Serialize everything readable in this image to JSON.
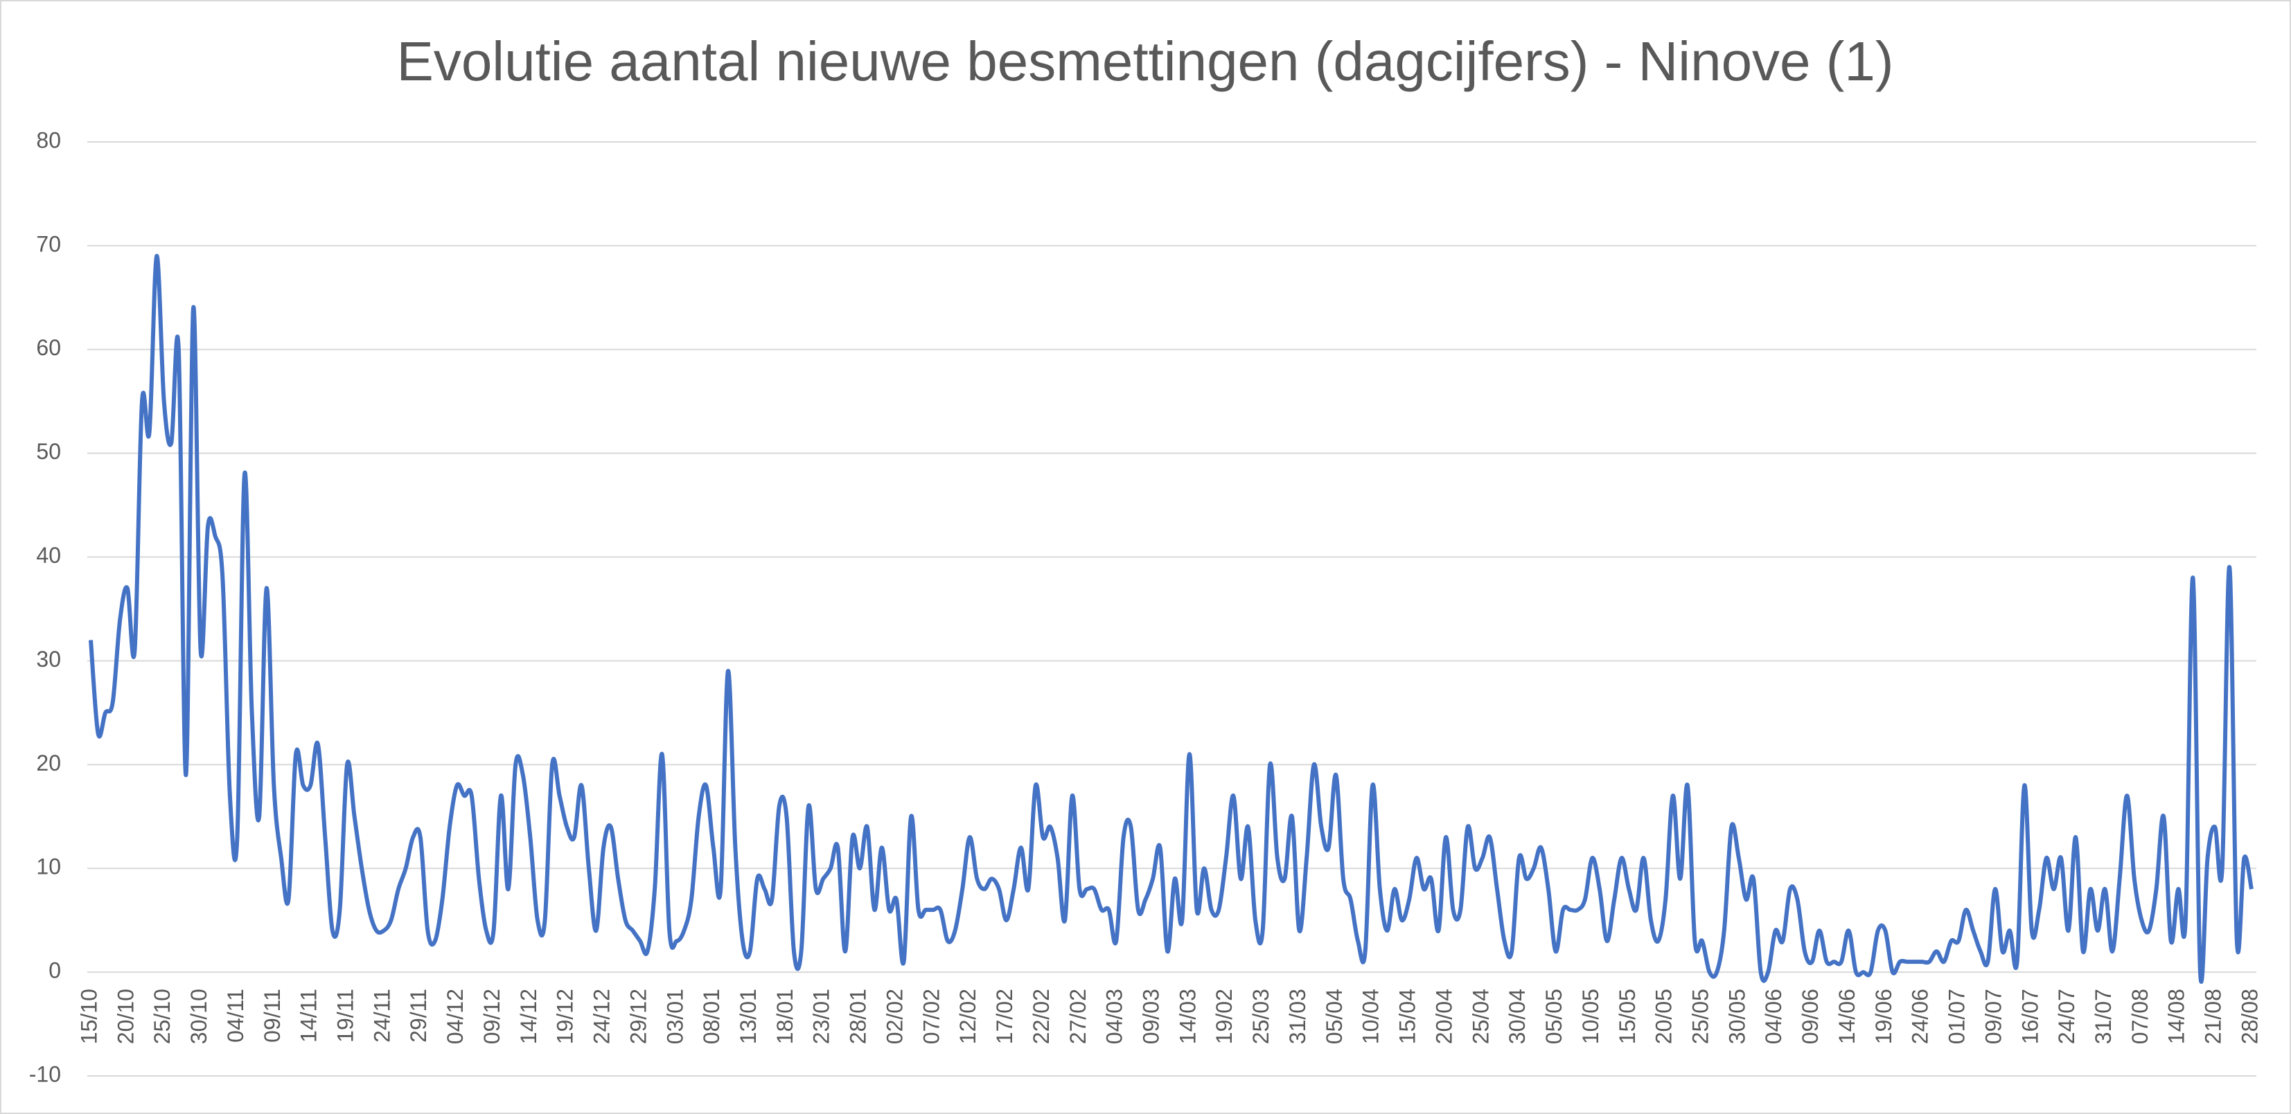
{
  "chart_data": {
    "type": "line",
    "title": "Evolutie aantal nieuwe besmettingen (dagcijfers) - Ninove (1)",
    "categories": [
      "15/10",
      null,
      null,
      null,
      null,
      "20/10",
      null,
      null,
      null,
      null,
      "25/10",
      null,
      null,
      null,
      null,
      "30/10",
      null,
      null,
      null,
      null,
      "04/11",
      null,
      null,
      null,
      null,
      "09/11",
      null,
      null,
      null,
      null,
      "14/11",
      null,
      null,
      null,
      null,
      "19/11",
      null,
      null,
      null,
      null,
      "24/11",
      null,
      null,
      null,
      null,
      "29/11",
      null,
      null,
      null,
      null,
      "04/12",
      null,
      null,
      null,
      null,
      "09/12",
      null,
      null,
      null,
      null,
      "14/12",
      null,
      null,
      null,
      null,
      "19/12",
      null,
      null,
      null,
      null,
      "24/12",
      null,
      null,
      null,
      null,
      "29/12",
      null,
      null,
      null,
      null,
      "03/01",
      null,
      null,
      null,
      null,
      "08/01",
      null,
      null,
      null,
      null,
      "13/01",
      null,
      null,
      null,
      null,
      "18/01",
      null,
      null,
      null,
      null,
      "23/01",
      null,
      null,
      null,
      null,
      "28/01",
      null,
      null,
      null,
      null,
      "02/02",
      null,
      null,
      null,
      null,
      "07/02",
      null,
      null,
      null,
      null,
      "12/02",
      null,
      null,
      null,
      null,
      "17/02",
      null,
      null,
      null,
      null,
      "22/02",
      null,
      null,
      null,
      null,
      "27/02",
      null,
      null,
      null,
      null,
      "04/03",
      null,
      null,
      null,
      null,
      "09/03",
      null,
      null,
      null,
      null,
      "14/03",
      null,
      null,
      null,
      null,
      "19/02",
      null,
      null,
      null,
      null,
      "25/03",
      null,
      null,
      null,
      null,
      "31/03",
      null,
      null,
      null,
      null,
      "05/04",
      null,
      null,
      null,
      null,
      "10/04",
      null,
      null,
      null,
      null,
      "15/04",
      null,
      null,
      null,
      null,
      "20/04",
      null,
      null,
      null,
      null,
      "25/04",
      null,
      null,
      null,
      null,
      "30/04",
      null,
      null,
      null,
      null,
      "05/05",
      null,
      null,
      null,
      null,
      "10/05",
      null,
      null,
      null,
      null,
      "15/05",
      null,
      null,
      null,
      null,
      "20/05",
      null,
      null,
      null,
      null,
      "25/05",
      null,
      null,
      null,
      null,
      "30/05",
      null,
      null,
      null,
      null,
      "04/06",
      null,
      null,
      null,
      null,
      "09/06",
      null,
      null,
      null,
      null,
      "14/06",
      null,
      null,
      null,
      null,
      "19/06",
      null,
      null,
      null,
      null,
      "24/06",
      null,
      null,
      null,
      null,
      "01/07",
      null,
      null,
      null,
      null,
      "09/07",
      null,
      null,
      null,
      null,
      "16/07",
      null,
      null,
      null,
      null,
      "24/07",
      null,
      null,
      null,
      null,
      "31/07",
      null,
      null,
      null,
      null,
      "07/08",
      null,
      null,
      null,
      null,
      "14/08",
      null,
      null,
      null,
      null,
      "21/08",
      null,
      null,
      null,
      null,
      "28/08"
    ],
    "series": [
      {
        "name": "Ninove",
        "color": "#4472c4",
        "values": [
          32,
          23,
          25,
          26,
          34,
          37,
          31,
          55,
          52,
          69,
          55,
          51,
          60,
          19,
          64,
          31,
          43,
          42,
          38,
          17,
          13,
          48,
          25,
          15,
          37,
          18,
          11,
          7,
          21,
          18,
          18,
          22,
          13,
          4,
          6,
          20,
          15,
          10,
          6,
          4,
          4,
          5,
          8,
          10,
          13,
          13,
          4,
          3,
          7,
          14,
          18,
          17,
          17,
          9,
          4,
          4,
          17,
          8,
          20,
          19,
          13,
          5,
          5,
          20,
          17,
          14,
          13,
          18,
          10,
          4,
          12,
          14,
          9,
          5,
          4,
          3,
          2,
          8,
          21,
          4,
          3,
          4,
          7,
          15,
          18,
          12,
          8,
          29,
          12,
          3,
          2,
          9,
          8,
          7,
          16,
          15,
          2,
          2,
          16,
          8,
          9,
          10,
          12,
          2,
          13,
          10,
          14,
          6,
          12,
          6,
          7,
          1,
          15,
          6,
          6,
          6,
          6,
          3,
          4,
          8,
          13,
          9,
          8,
          9,
          8,
          5,
          8,
          12,
          8,
          18,
          13,
          14,
          11,
          5,
          17,
          8,
          8,
          8,
          6,
          6,
          3,
          13,
          14,
          6,
          7,
          9,
          12,
          2,
          9,
          5,
          21,
          6,
          10,
          6,
          6,
          11,
          17,
          9,
          14,
          5,
          4,
          20,
          11,
          9,
          15,
          4,
          11,
          20,
          14,
          12,
          19,
          9,
          7,
          3,
          2,
          18,
          8,
          4,
          8,
          5,
          7,
          11,
          8,
          9,
          4,
          13,
          6,
          6,
          14,
          10,
          11,
          13,
          8,
          3,
          2,
          11,
          9,
          10,
          12,
          8,
          2,
          6,
          6,
          6,
          7,
          11,
          8,
          3,
          7,
          11,
          8,
          6,
          11,
          5,
          3,
          7,
          17,
          9,
          18,
          3,
          3,
          0,
          0,
          4,
          14,
          11,
          7,
          9,
          0,
          0,
          4,
          3,
          8,
          7,
          2,
          1,
          4,
          1,
          1,
          1,
          4,
          0,
          0,
          0,
          4,
          4,
          0,
          1,
          1,
          1,
          1,
          1,
          2,
          1,
          3,
          3,
          6,
          4,
          2,
          1,
          8,
          2,
          4,
          1,
          18,
          4,
          6,
          11,
          8,
          11,
          4,
          13,
          2,
          8,
          4,
          8,
          2,
          9,
          17,
          9,
          5,
          4,
          8,
          15,
          3,
          8,
          5,
          38,
          0,
          11,
          14,
          10,
          39,
          3,
          11,
          8
        ]
      }
    ],
    "ylim": [
      -10,
      80
    ],
    "yticks": [
      -10,
      0,
      10,
      20,
      30,
      40,
      50,
      60,
      70,
      80
    ],
    "grid": true
  }
}
